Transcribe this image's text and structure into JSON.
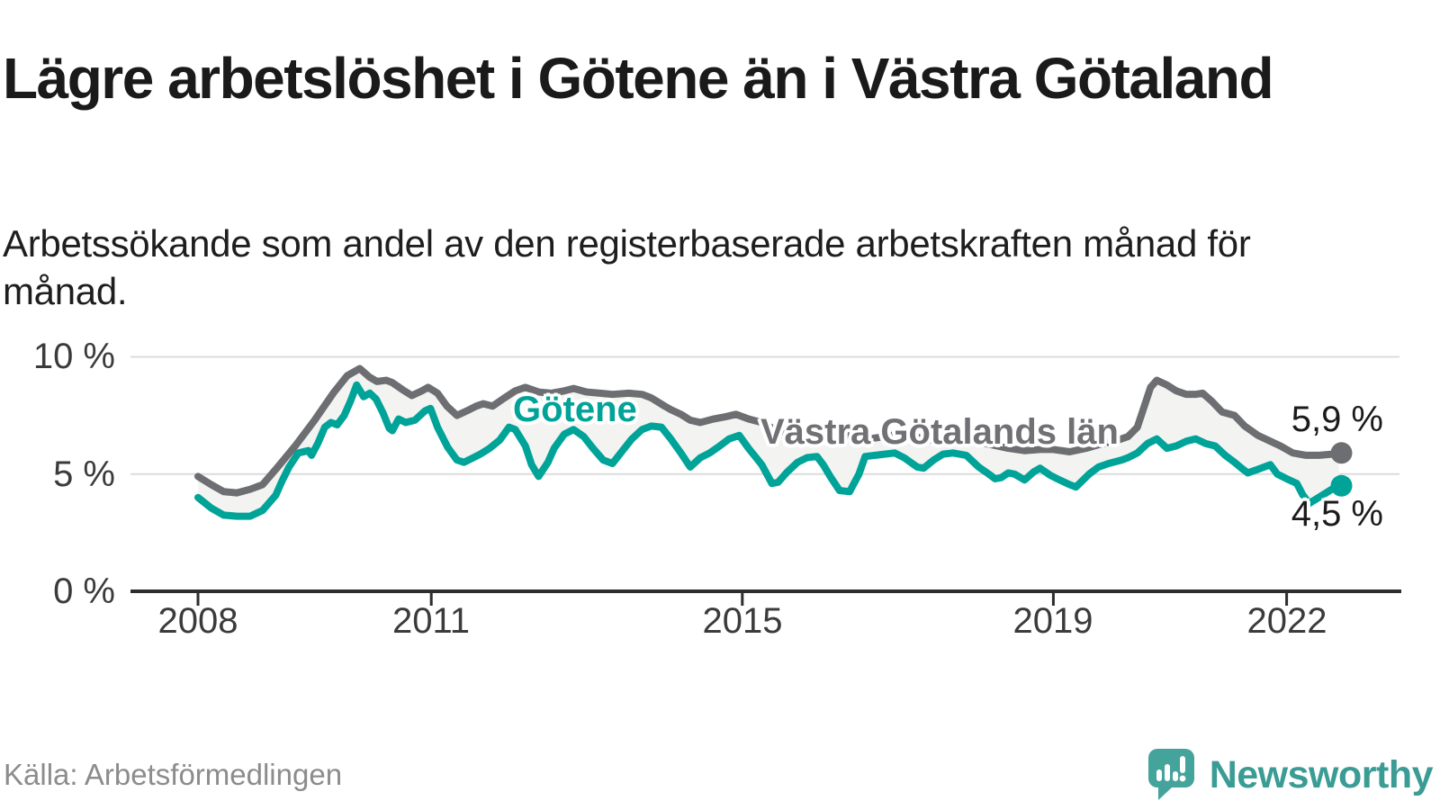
{
  "header": {
    "title": "Lägre arbetslöshet i Götene än i Västra Götaland",
    "subtitle": "Arbetssökande som andel av den registerbaserade arbetskraften månad för månad."
  },
  "chart_data": {
    "type": "line",
    "title": "Lägre arbetslöshet i Götene än i Västra Götaland",
    "xlabel": "",
    "ylabel": "",
    "x_axis": {
      "tick_years": [
        2008,
        2011,
        2015,
        2019,
        2022
      ],
      "tick_labels": [
        "2008",
        "2011",
        "2015",
        "2019",
        "2022"
      ],
      "range": [
        2008.0,
        2022.75
      ]
    },
    "y_axis": {
      "tick_labels": [
        "0 %",
        "5 %",
        "10 %"
      ],
      "tick_values": [
        0,
        5,
        10
      ],
      "unit": "%",
      "ylim": [
        0,
        10.6
      ],
      "gridlines_at": [
        5,
        10
      ]
    },
    "legend_position": "inline-labels-on-chart",
    "fill_between_series": true,
    "series": [
      {
        "name": "Västra Götalands län",
        "color": "#6d6e71",
        "end_label": "5,9 %",
        "end_value": 5.9,
        "points": [
          [
            2008.0,
            4.9
          ],
          [
            2008.17,
            4.55
          ],
          [
            2008.33,
            4.25
          ],
          [
            2008.5,
            4.2
          ],
          [
            2008.67,
            4.35
          ],
          [
            2008.83,
            4.55
          ],
          [
            2009.0,
            5.2
          ],
          [
            2009.25,
            6.2
          ],
          [
            2009.5,
            7.3
          ],
          [
            2009.75,
            8.5
          ],
          [
            2009.92,
            9.2
          ],
          [
            2010.08,
            9.5
          ],
          [
            2010.2,
            9.15
          ],
          [
            2010.3,
            8.95
          ],
          [
            2010.42,
            9.0
          ],
          [
            2010.5,
            8.9
          ],
          [
            2010.63,
            8.6
          ],
          [
            2010.75,
            8.35
          ],
          [
            2010.88,
            8.55
          ],
          [
            2010.96,
            8.7
          ],
          [
            2011.08,
            8.45
          ],
          [
            2011.2,
            7.9
          ],
          [
            2011.33,
            7.5
          ],
          [
            2011.46,
            7.7
          ],
          [
            2011.58,
            7.9
          ],
          [
            2011.67,
            8.0
          ],
          [
            2011.79,
            7.9
          ],
          [
            2011.92,
            8.2
          ],
          [
            2012.08,
            8.55
          ],
          [
            2012.21,
            8.7
          ],
          [
            2012.38,
            8.5
          ],
          [
            2012.54,
            8.45
          ],
          [
            2012.71,
            8.55
          ],
          [
            2012.83,
            8.65
          ],
          [
            2013.0,
            8.5
          ],
          [
            2013.17,
            8.45
          ],
          [
            2013.33,
            8.4
          ],
          [
            2013.54,
            8.45
          ],
          [
            2013.71,
            8.4
          ],
          [
            2013.83,
            8.25
          ],
          [
            2014.0,
            7.9
          ],
          [
            2014.08,
            7.75
          ],
          [
            2014.21,
            7.55
          ],
          [
            2014.33,
            7.3
          ],
          [
            2014.46,
            7.2
          ],
          [
            2014.63,
            7.35
          ],
          [
            2014.79,
            7.45
          ],
          [
            2014.92,
            7.55
          ],
          [
            2015.08,
            7.35
          ],
          [
            2015.25,
            7.2
          ],
          [
            2015.42,
            6.9
          ],
          [
            2015.54,
            6.8
          ],
          [
            2015.71,
            6.6
          ],
          [
            2015.88,
            6.7
          ],
          [
            2016.0,
            6.85
          ],
          [
            2016.21,
            6.8
          ],
          [
            2016.42,
            6.6
          ],
          [
            2016.63,
            6.5
          ],
          [
            2016.83,
            6.6
          ],
          [
            2017.0,
            6.7
          ],
          [
            2017.21,
            6.6
          ],
          [
            2017.42,
            6.45
          ],
          [
            2017.63,
            6.35
          ],
          [
            2017.83,
            6.4
          ],
          [
            2018.0,
            6.4
          ],
          [
            2018.21,
            6.25
          ],
          [
            2018.42,
            6.1
          ],
          [
            2018.63,
            6.0
          ],
          [
            2018.83,
            6.05
          ],
          [
            2019.0,
            6.05
          ],
          [
            2019.21,
            5.95
          ],
          [
            2019.42,
            6.1
          ],
          [
            2019.63,
            6.3
          ],
          [
            2019.83,
            6.45
          ],
          [
            2019.96,
            6.6
          ],
          [
            2020.08,
            7.0
          ],
          [
            2020.17,
            7.9
          ],
          [
            2020.25,
            8.7
          ],
          [
            2020.33,
            9.0
          ],
          [
            2020.46,
            8.8
          ],
          [
            2020.58,
            8.55
          ],
          [
            2020.71,
            8.4
          ],
          [
            2020.83,
            8.4
          ],
          [
            2020.92,
            8.45
          ],
          [
            2021.04,
            8.1
          ],
          [
            2021.17,
            7.65
          ],
          [
            2021.33,
            7.5
          ],
          [
            2021.46,
            7.05
          ],
          [
            2021.63,
            6.65
          ],
          [
            2021.79,
            6.4
          ],
          [
            2021.92,
            6.2
          ],
          [
            2022.08,
            5.9
          ],
          [
            2022.25,
            5.8
          ],
          [
            2022.42,
            5.8
          ],
          [
            2022.58,
            5.85
          ],
          [
            2022.67,
            5.9
          ]
        ]
      },
      {
        "name": "Götene",
        "color": "#00a398",
        "end_label": "4,5 %",
        "end_value": 4.5,
        "points": [
          [
            2008.0,
            4.0
          ],
          [
            2008.17,
            3.55
          ],
          [
            2008.33,
            3.25
          ],
          [
            2008.5,
            3.2
          ],
          [
            2008.67,
            3.2
          ],
          [
            2008.83,
            3.45
          ],
          [
            2009.0,
            4.1
          ],
          [
            2009.08,
            4.7
          ],
          [
            2009.17,
            5.3
          ],
          [
            2009.29,
            5.9
          ],
          [
            2009.42,
            6.0
          ],
          [
            2009.46,
            5.8
          ],
          [
            2009.54,
            6.3
          ],
          [
            2009.63,
            7.0
          ],
          [
            2009.71,
            7.2
          ],
          [
            2009.79,
            7.1
          ],
          [
            2009.88,
            7.5
          ],
          [
            2009.96,
            8.1
          ],
          [
            2010.04,
            8.8
          ],
          [
            2010.13,
            8.3
          ],
          [
            2010.21,
            8.45
          ],
          [
            2010.29,
            8.2
          ],
          [
            2010.38,
            7.6
          ],
          [
            2010.46,
            6.95
          ],
          [
            2010.5,
            6.85
          ],
          [
            2010.58,
            7.35
          ],
          [
            2010.67,
            7.2
          ],
          [
            2010.79,
            7.3
          ],
          [
            2010.92,
            7.7
          ],
          [
            2010.99,
            7.8
          ],
          [
            2011.08,
            7.0
          ],
          [
            2011.21,
            6.15
          ],
          [
            2011.33,
            5.6
          ],
          [
            2011.42,
            5.5
          ],
          [
            2011.54,
            5.7
          ],
          [
            2011.63,
            5.85
          ],
          [
            2011.75,
            6.1
          ],
          [
            2011.88,
            6.45
          ],
          [
            2012.0,
            7.0
          ],
          [
            2012.08,
            6.9
          ],
          [
            2012.21,
            6.2
          ],
          [
            2012.29,
            5.4
          ],
          [
            2012.38,
            4.9
          ],
          [
            2012.5,
            5.5
          ],
          [
            2012.58,
            6.1
          ],
          [
            2012.71,
            6.7
          ],
          [
            2012.83,
            6.9
          ],
          [
            2012.96,
            6.6
          ],
          [
            2013.08,
            6.1
          ],
          [
            2013.21,
            5.6
          ],
          [
            2013.33,
            5.45
          ],
          [
            2013.46,
            6.0
          ],
          [
            2013.58,
            6.5
          ],
          [
            2013.71,
            6.9
          ],
          [
            2013.83,
            7.05
          ],
          [
            2013.96,
            7.0
          ],
          [
            2014.08,
            6.5
          ],
          [
            2014.21,
            5.9
          ],
          [
            2014.33,
            5.3
          ],
          [
            2014.46,
            5.7
          ],
          [
            2014.58,
            5.9
          ],
          [
            2014.71,
            6.2
          ],
          [
            2014.83,
            6.5
          ],
          [
            2014.96,
            6.65
          ],
          [
            2015.08,
            6.1
          ],
          [
            2015.25,
            5.4
          ],
          [
            2015.38,
            4.6
          ],
          [
            2015.46,
            4.65
          ],
          [
            2015.58,
            5.1
          ],
          [
            2015.71,
            5.5
          ],
          [
            2015.83,
            5.7
          ],
          [
            2015.96,
            5.75
          ],
          [
            2016.04,
            5.4
          ],
          [
            2016.13,
            4.9
          ],
          [
            2016.25,
            4.3
          ],
          [
            2016.38,
            4.25
          ],
          [
            2016.5,
            5.0
          ],
          [
            2016.58,
            5.75
          ],
          [
            2016.71,
            5.8
          ],
          [
            2016.83,
            5.85
          ],
          [
            2016.96,
            5.9
          ],
          [
            2017.08,
            5.7
          ],
          [
            2017.25,
            5.3
          ],
          [
            2017.33,
            5.25
          ],
          [
            2017.46,
            5.6
          ],
          [
            2017.58,
            5.85
          ],
          [
            2017.71,
            5.9
          ],
          [
            2017.88,
            5.8
          ],
          [
            2018.04,
            5.3
          ],
          [
            2018.17,
            5.0
          ],
          [
            2018.25,
            4.8
          ],
          [
            2018.33,
            4.85
          ],
          [
            2018.42,
            5.05
          ],
          [
            2018.5,
            5.0
          ],
          [
            2018.63,
            4.75
          ],
          [
            2018.75,
            5.1
          ],
          [
            2018.83,
            5.25
          ],
          [
            2018.96,
            4.95
          ],
          [
            2019.08,
            4.75
          ],
          [
            2019.21,
            4.55
          ],
          [
            2019.29,
            4.45
          ],
          [
            2019.46,
            5.0
          ],
          [
            2019.58,
            5.3
          ],
          [
            2019.71,
            5.45
          ],
          [
            2019.88,
            5.6
          ],
          [
            2019.96,
            5.7
          ],
          [
            2020.08,
            5.9
          ],
          [
            2020.21,
            6.3
          ],
          [
            2020.33,
            6.5
          ],
          [
            2020.46,
            6.1
          ],
          [
            2020.58,
            6.2
          ],
          [
            2020.71,
            6.4
          ],
          [
            2020.83,
            6.5
          ],
          [
            2020.96,
            6.3
          ],
          [
            2021.08,
            6.2
          ],
          [
            2021.21,
            5.8
          ],
          [
            2021.33,
            5.5
          ],
          [
            2021.42,
            5.25
          ],
          [
            2021.5,
            5.05
          ],
          [
            2021.63,
            5.2
          ],
          [
            2021.75,
            5.35
          ],
          [
            2021.79,
            5.4
          ],
          [
            2021.88,
            5.0
          ],
          [
            2022.0,
            4.8
          ],
          [
            2022.13,
            4.6
          ],
          [
            2022.21,
            4.1
          ],
          [
            2022.29,
            3.75
          ],
          [
            2022.46,
            4.1
          ],
          [
            2022.58,
            4.35
          ],
          [
            2022.67,
            4.5
          ]
        ]
      }
    ],
    "style": {
      "grid_color": "#dcdcdc",
      "axis_color": "#2d2d2d",
      "fill_color": "#f3f3f1",
      "line_width": 8,
      "dot_radius": 12
    }
  },
  "footer": {
    "source": "Källa: Arbetsförmedlingen",
    "brand": "Newsworthy",
    "brand_color": "#3a9c94"
  }
}
